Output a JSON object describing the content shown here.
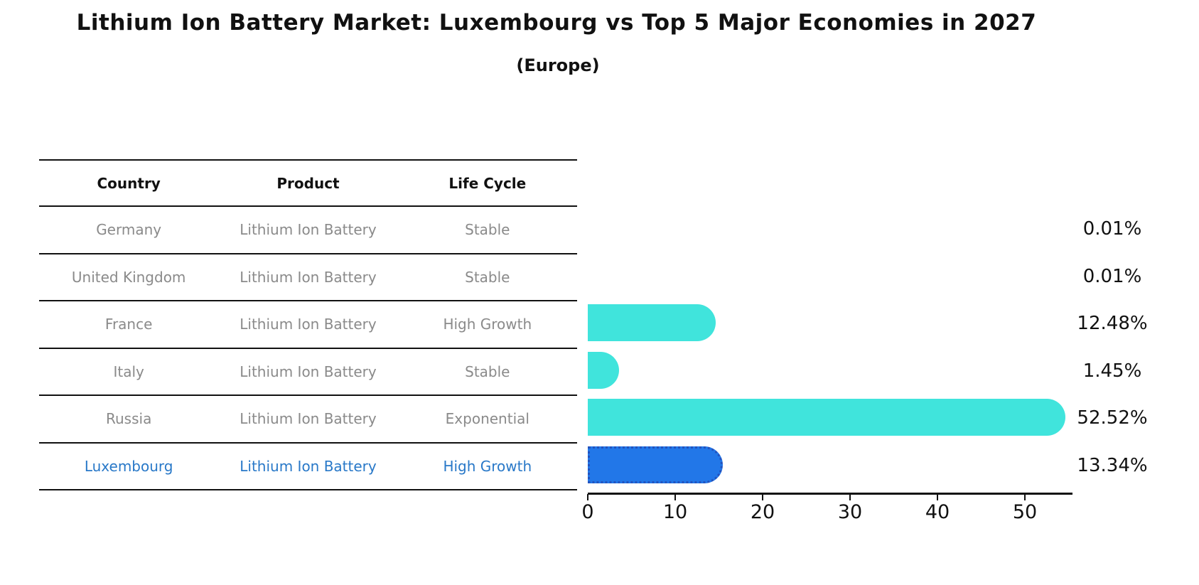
{
  "title": "Lithium Ion Battery Market: Luxembourg vs Top 5 Major Economies in 2027",
  "subtitle": "(Europe)",
  "table": {
    "columns": [
      "Country",
      "Product",
      "Life Cycle"
    ],
    "rows": [
      {
        "country": "Germany",
        "product": "Lithium Ion Battery",
        "life_cycle": "Stable",
        "highlight": false
      },
      {
        "country": "United Kingdom",
        "product": "Lithium Ion Battery",
        "life_cycle": "Stable",
        "highlight": false
      },
      {
        "country": "France",
        "product": "Lithium Ion Battery",
        "life_cycle": "High Growth",
        "highlight": false
      },
      {
        "country": "Italy",
        "product": "Lithium Ion Battery",
        "life_cycle": "Stable",
        "highlight": false
      },
      {
        "country": "Russia",
        "product": "Lithium Ion Battery",
        "life_cycle": "Exponential",
        "highlight": false
      },
      {
        "country": "Luxembourg",
        "product": "Lithium Ion Battery",
        "life_cycle": "High Growth",
        "highlight": true
      }
    ]
  },
  "chart_data": {
    "type": "bar",
    "orientation": "horizontal",
    "title": "Lithium Ion Battery Market: Luxembourg vs Top 5 Major Economies in 2027",
    "subtitle": "(Europe)",
    "categories": [
      "Germany",
      "United Kingdom",
      "France",
      "Italy",
      "Russia",
      "Luxembourg"
    ],
    "values": [
      0.01,
      0.01,
      12.48,
      1.45,
      52.52,
      13.34
    ],
    "value_labels": [
      "0.01%",
      "0.01%",
      "12.48%",
      "1.45%",
      "52.52%",
      "13.34%"
    ],
    "xlabel": "",
    "ylabel": "",
    "xlim": [
      0,
      55.4
    ],
    "xticks": [
      0,
      10,
      20,
      30,
      40,
      50
    ],
    "grid": false,
    "legend": "none",
    "bar_color": "#40E4DC",
    "highlight_index": 5,
    "highlight_color": "#2277E8",
    "highlight_edge_color": "#2353BE",
    "highlight_edge_style": "dotted"
  },
  "colors": {
    "background": "#ffffff",
    "title_text": "#111111",
    "table_text": "#8a8a8a",
    "table_line": "#111111",
    "highlight_text": "#2878c8",
    "axis": "#111111"
  }
}
